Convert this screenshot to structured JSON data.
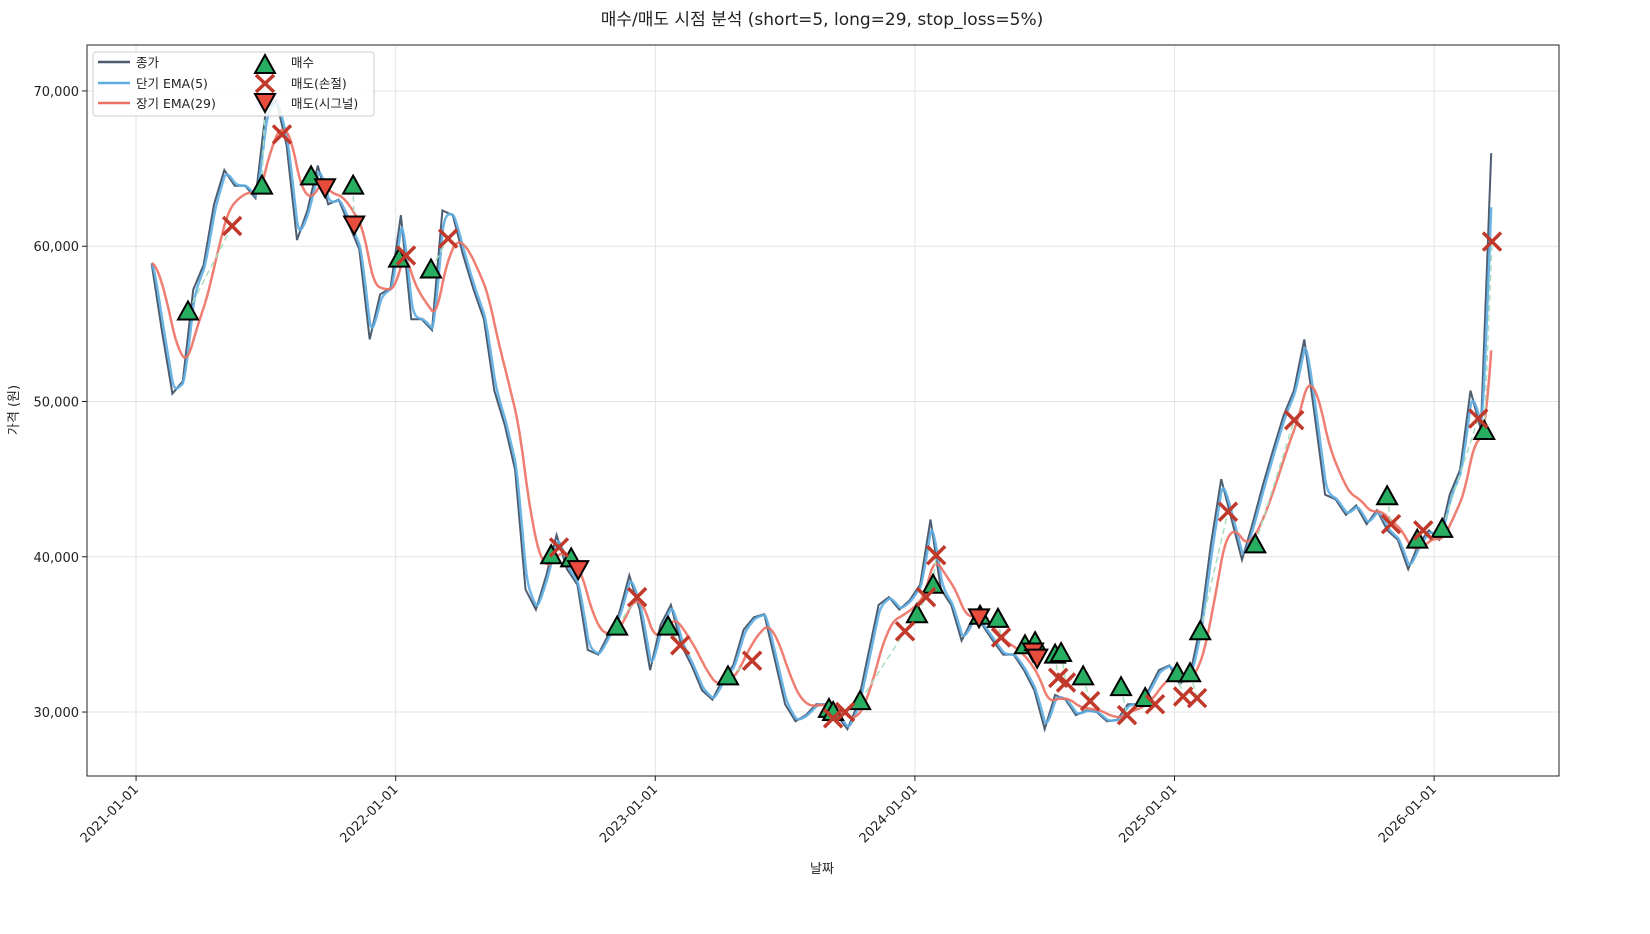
{
  "chart_data": {
    "type": "line",
    "title": "매수/매도 시점 분석 (short=5, long=29, stop_loss=5%)",
    "xlabel": "날짜",
    "ylabel": "가격 (원)",
    "xlim": [
      2020.811,
      2026.481
    ],
    "ylim": [
      25880,
      72960
    ],
    "grid": true,
    "legend_placement": "top-left",
    "legend": [
      "종가",
      "단기 EMA(5)",
      "장기 EMA(29)",
      "매수",
      "매도(손절)",
      "매도(시그널)"
    ],
    "ema_short_span": 5,
    "ema_long_span": 29,
    "xticks": [
      {
        "value": 2021,
        "label": "2021-01-01"
      },
      {
        "value": 2022,
        "label": "2022-01-01"
      },
      {
        "value": 2023,
        "label": "2023-01-01"
      },
      {
        "value": 2024,
        "label": "2024-01-01"
      },
      {
        "value": 2025,
        "label": "2025-01-01"
      },
      {
        "value": 2026,
        "label": "2026-01-01"
      }
    ],
    "yticks": [
      {
        "value": 30000,
        "label": "30,000"
      },
      {
        "value": 40000,
        "label": "40,000"
      },
      {
        "value": 50000,
        "label": "50,000"
      },
      {
        "value": 60000,
        "label": "60,000"
      },
      {
        "value": 70000,
        "label": "70,000"
      }
    ],
    "close": {
      "start_year": 2021.06,
      "step_years": 0.04,
      "values": [
        58900,
        54500,
        50500,
        51300,
        57200,
        58800,
        62700,
        64900,
        63900,
        63900,
        63100,
        68800,
        69400,
        66500,
        60400,
        62300,
        65200,
        62700,
        63000,
        61400,
        59800,
        54000,
        56900,
        57300,
        62000,
        55300,
        55300,
        54600,
        62300,
        62000,
        59400,
        57200,
        55300,
        50700,
        48500,
        45600,
        37900,
        36600,
        38800,
        41400,
        39200,
        38200,
        34000,
        33700,
        35000,
        36300,
        38800,
        36600,
        32700,
        35600,
        36900,
        34300,
        33000,
        31400,
        30800,
        32100,
        33000,
        35300,
        36100,
        36300,
        33400,
        30500,
        29400,
        29800,
        30500,
        30500,
        29800,
        28900,
        30500,
        33700,
        36900,
        37400,
        36600,
        37200,
        38200,
        42400,
        37900,
        36900,
        34600,
        35900,
        35600,
        34600,
        33700,
        33700,
        32700,
        31400,
        28900,
        31100,
        30800,
        29800,
        30100,
        30000,
        29400,
        29500,
        30500,
        30500,
        31400,
        32700,
        33000,
        31800,
        32400,
        35600,
        40800,
        45000,
        42400,
        39800,
        42100,
        44600,
        46900,
        49100,
        50700,
        54000,
        49100,
        44000,
        43700,
        42700,
        43300,
        42100,
        43000,
        41700,
        41100,
        39200,
        40800,
        41700,
        41100,
        44000,
        45600,
        50700,
        48200,
        66000
      ]
    },
    "buy": [
      [
        2021.2,
        55800
      ],
      [
        2021.485,
        63900
      ],
      [
        2021.674,
        64500
      ],
      [
        2021.836,
        63900
      ],
      [
        2022.013,
        59200
      ],
      [
        2022.136,
        58500
      ],
      [
        2022.599,
        40100
      ],
      [
        2022.676,
        39900
      ],
      [
        2022.853,
        35500
      ],
      [
        2023.049,
        35500
      ],
      [
        2023.28,
        32300
      ],
      [
        2023.669,
        30200
      ],
      [
        2023.685,
        30000
      ],
      [
        2023.789,
        30700
      ],
      [
        2024.008,
        36300
      ],
      [
        2024.07,
        38200
      ],
      [
        2024.251,
        36200
      ],
      [
        2024.32,
        36000
      ],
      [
        2024.424,
        34300
      ],
      [
        2024.463,
        34500
      ],
      [
        2024.54,
        33700
      ],
      [
        2024.563,
        33800
      ],
      [
        2024.648,
        32300
      ],
      [
        2024.794,
        31600
      ],
      [
        2024.887,
        30900
      ],
      [
        2025.01,
        32500
      ],
      [
        2025.06,
        32500
      ],
      [
        2025.099,
        35200
      ],
      [
        2025.311,
        40800
      ],
      [
        2025.819,
        43900
      ],
      [
        2025.935,
        41100
      ],
      [
        2026.031,
        41800
      ],
      [
        2026.193,
        48100
      ]
    ],
    "sell_stop_loss": [
      [
        2021.37,
        61300
      ],
      [
        2021.562,
        67200
      ],
      [
        2022.04,
        59400
      ],
      [
        2022.202,
        60500
      ],
      [
        2022.629,
        40600
      ],
      [
        2022.93,
        37400
      ],
      [
        2023.096,
        34300
      ],
      [
        2023.373,
        33300
      ],
      [
        2023.685,
        29600
      ],
      [
        2023.731,
        30000
      ],
      [
        2023.962,
        35200
      ],
      [
        2024.043,
        37400
      ],
      [
        2024.082,
        40100
      ],
      [
        2024.332,
        34800
      ],
      [
        2024.552,
        32200
      ],
      [
        2024.582,
        31900
      ],
      [
        2024.675,
        30700
      ],
      [
        2024.817,
        29800
      ],
      [
        2024.925,
        30500
      ],
      [
        2025.033,
        31000
      ],
      [
        2025.087,
        30900
      ],
      [
        2025.206,
        42900
      ],
      [
        2025.461,
        48800
      ],
      [
        2025.834,
        42100
      ],
      [
        2025.958,
        41700
      ],
      [
        2026.17,
        48900
      ],
      [
        2026.223,
        60300
      ]
    ],
    "sell_signal": [
      [
        2021.497,
        69300
      ],
      [
        2021.728,
        63800
      ],
      [
        2021.84,
        61400
      ],
      [
        2022.703,
        39200
      ],
      [
        2024.247,
        36100
      ],
      [
        2024.455,
        33900
      ],
      [
        2024.471,
        33500
      ]
    ],
    "colors": {
      "close": "#4d5d70",
      "ema_short": "#5dade2",
      "ema_long": "#ec7063",
      "buy": "#27ae60",
      "sell_stop_loss": "#c0392b",
      "sell_signal": "#e74c3c",
      "trade_line": "#a9dfbf"
    }
  }
}
